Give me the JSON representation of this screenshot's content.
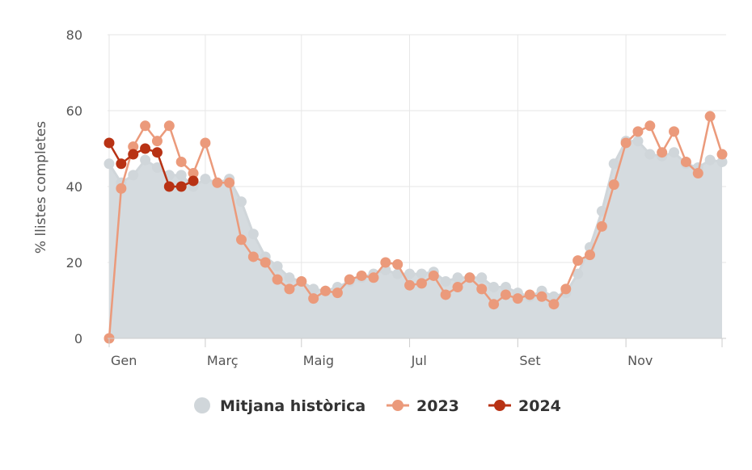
{
  "chart_data": {
    "type": "line",
    "ylabel": "% llistes completes",
    "ylim": [
      0,
      80
    ],
    "yticks": [
      0,
      20,
      40,
      60,
      80
    ],
    "grid": true,
    "legend_position": "bottom",
    "xticks": [
      {
        "label": "Gen",
        "week": 1
      },
      {
        "label": "Març",
        "week": 9
      },
      {
        "label": "Maig",
        "week": 17
      },
      {
        "label": "Jul",
        "week": 26
      },
      {
        "label": "Set",
        "week": 35
      },
      {
        "label": "Nov",
        "week": 44
      }
    ],
    "series": [
      {
        "name": "Mitjana històrica",
        "kind": "area",
        "color": "#d5dbdf",
        "x": [
          1,
          2,
          3,
          4,
          5,
          6,
          7,
          8,
          9,
          10,
          11,
          12,
          13,
          14,
          15,
          16,
          17,
          18,
          19,
          20,
          21,
          22,
          23,
          24,
          25,
          26,
          27,
          28,
          29,
          30,
          31,
          32,
          33,
          34,
          35,
          36,
          37,
          38,
          39,
          40,
          41,
          42,
          43,
          44,
          45,
          46,
          47,
          48,
          49,
          50,
          51,
          52
        ],
        "values": [
          46,
          41,
          43,
          47,
          45,
          43,
          43,
          40,
          42,
          41,
          42,
          36,
          27.5,
          21.5,
          19,
          16,
          15,
          13,
          12.5,
          13.5,
          15,
          16,
          17,
          18,
          17,
          17,
          17,
          17.5,
          15,
          16,
          16,
          16,
          13.5,
          13.5,
          12,
          11,
          12.5,
          11,
          12,
          17,
          24,
          33.5,
          46,
          52,
          52,
          48.5,
          48,
          49,
          46,
          45,
          47,
          46.5
        ]
      },
      {
        "name": "2023",
        "kind": "line",
        "color": "#eb9a7b",
        "x": [
          1,
          2,
          3,
          4,
          5,
          6,
          7,
          8,
          9,
          10,
          11,
          12,
          13,
          14,
          15,
          16,
          17,
          18,
          19,
          20,
          21,
          22,
          23,
          24,
          25,
          26,
          27,
          28,
          29,
          30,
          31,
          32,
          33,
          34,
          35,
          36,
          37,
          38,
          39,
          40,
          41,
          42,
          43,
          44,
          45,
          46,
          47,
          48,
          49,
          50,
          51,
          52
        ],
        "values": [
          0,
          39.5,
          50.5,
          56,
          52,
          56,
          46.5,
          43.5,
          51.5,
          41,
          41,
          26,
          21.5,
          20,
          15.5,
          13,
          15,
          10.5,
          12.5,
          12,
          15.5,
          16.5,
          16,
          20,
          19.5,
          14,
          14.5,
          16.5,
          11.5,
          13.5,
          16,
          13,
          9,
          11.5,
          10.5,
          11.5,
          11,
          9,
          13,
          20.5,
          22,
          29.5,
          40.5,
          51.5,
          54.5,
          56,
          49,
          54.5,
          46.5,
          43.5,
          58.5,
          48.5
        ]
      },
      {
        "name": "2024",
        "kind": "line",
        "color": "#b83214",
        "x": [
          1,
          2,
          3,
          4,
          5,
          6,
          7,
          8
        ],
        "values": [
          51.5,
          46,
          48.5,
          50,
          49,
          40,
          40,
          41.5
        ]
      }
    ]
  }
}
